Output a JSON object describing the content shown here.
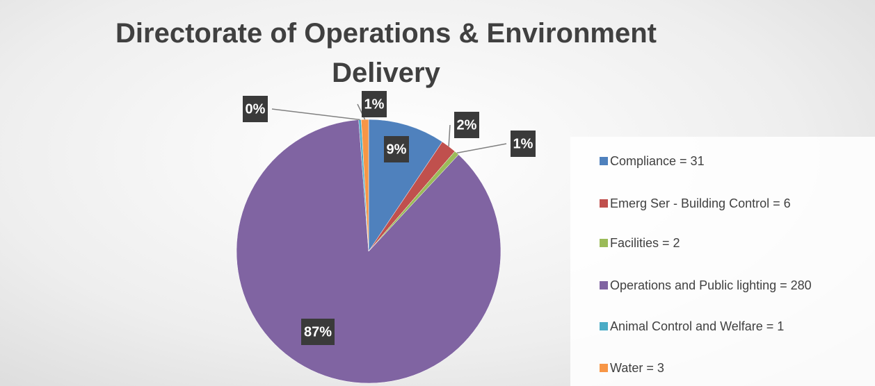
{
  "chart_data": {
    "type": "pie",
    "title": "Directorate of Operations & Environment Delivery",
    "categories": [
      "Compliance = 31",
      "Emerg Ser - Building Control   = 6",
      "Facilities = 2",
      "Operations and Public lighting = 280",
      "Animal Control and Welfare = 1",
      "Water = 3"
    ],
    "values": [
      9.4,
      1.9,
      0.6,
      86.8,
      0.3,
      0.9
    ],
    "value_labels": [
      "9%",
      "2%",
      "1%",
      "87%",
      "0%",
      "1%"
    ],
    "colors": [
      "#4f81bd",
      "#c0504d",
      "#9bbb59",
      "#8064a2",
      "#4bacc6",
      "#f79646"
    ],
    "legend": "right"
  }
}
